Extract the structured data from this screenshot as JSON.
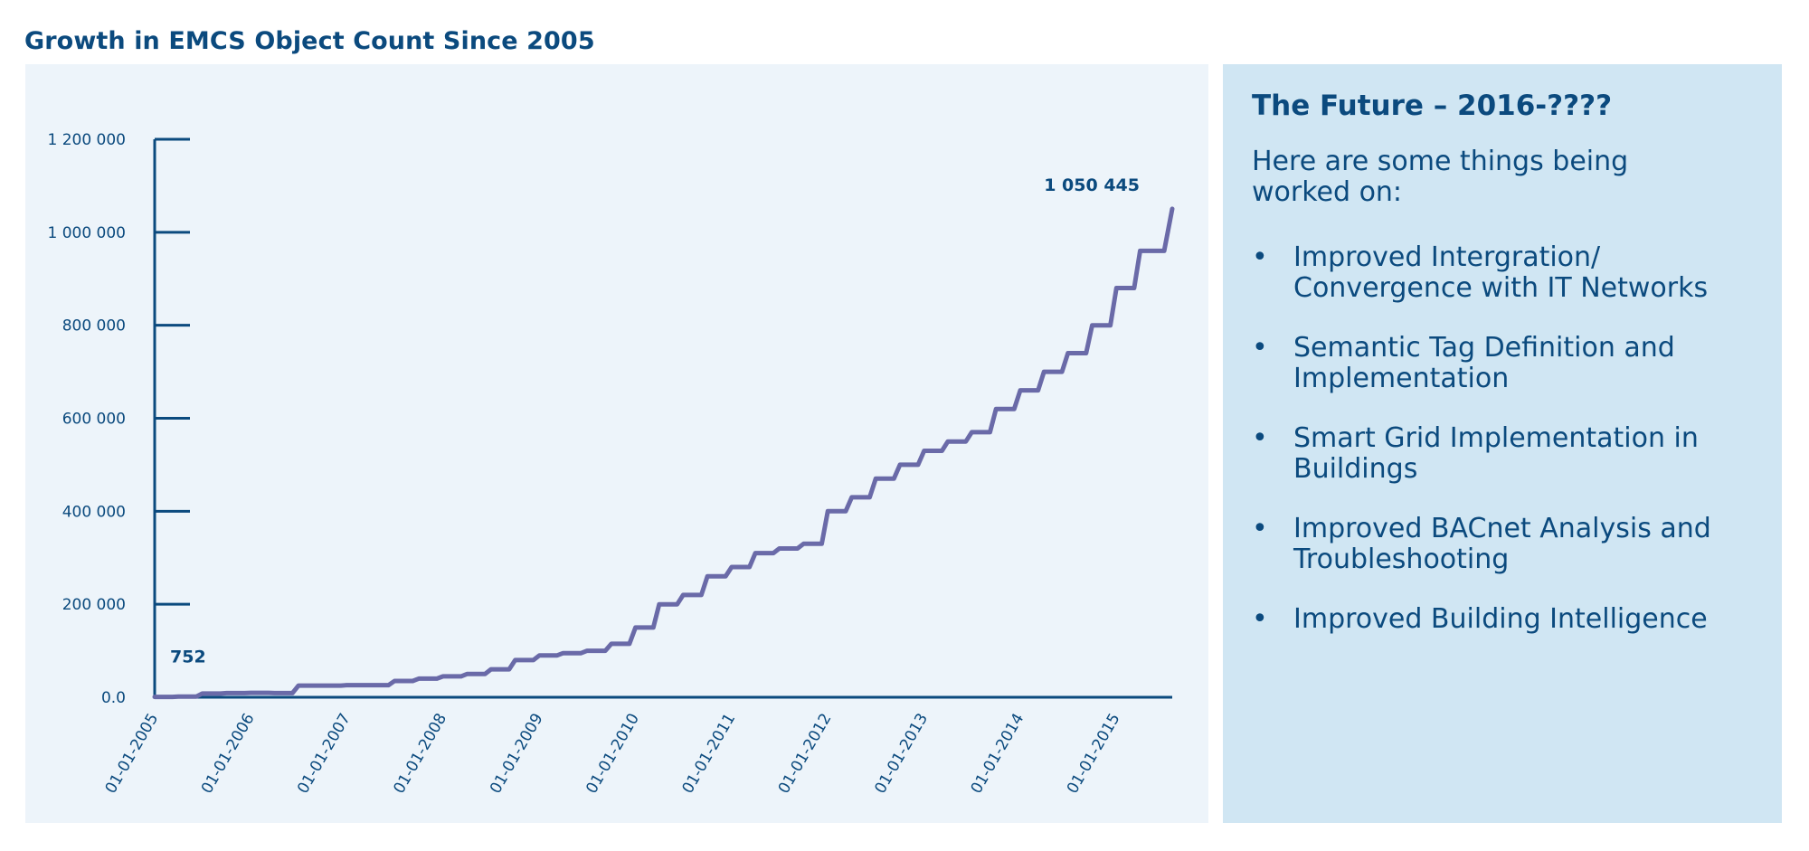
{
  "page": {
    "title": "Growth in EMCS Object Count Since 2005"
  },
  "side": {
    "title": "The Future – 2016-????",
    "intro": "Here are some things being worked on:",
    "items": [
      "Improved Intergration/ Convergence with IT Networks",
      "Semantic Tag Definition and Implementation",
      "Smart Grid Implementation in Buildings",
      "Improved BACnet Analysis and Troubleshooting",
      "Improved Building Intelligence"
    ]
  },
  "colors": {
    "title": "#0b4a7e",
    "axis": "#0b4a7e",
    "line": "#6a6aa8",
    "chart_bg": "#edf4fa",
    "side_bg": "#d0e6f3"
  },
  "chart_data": {
    "type": "line",
    "title": "Growth in EMCS Object Count Since 2005",
    "xlabel": "",
    "ylabel": "",
    "ylim": [
      0,
      1200000
    ],
    "xlim": [
      "2005-01-01",
      "2015-08-01"
    ],
    "y_ticks": [
      0,
      200000,
      400000,
      600000,
      800000,
      1000000,
      1200000
    ],
    "y_tick_labels": [
      "0.0",
      "200 000",
      "400 000",
      "600 000",
      "800 000",
      "1 000 000",
      "1 200 000"
    ],
    "x_ticks": [
      "2005-01-01",
      "2006-01-01",
      "2007-01-01",
      "2008-01-01",
      "2009-01-01",
      "2010-01-01",
      "2011-01-01",
      "2012-01-01",
      "2013-01-01",
      "2014-01-01",
      "2015-01-01"
    ],
    "x_tick_labels": [
      "01-01-2005",
      "01-01-2006",
      "01-01-2007",
      "01-01-2008",
      "01-01-2009",
      "01-01-2010",
      "01-01-2011",
      "01-01-2012",
      "01-01-2013",
      "01-01-2014",
      "01-01-2015"
    ],
    "grid": false,
    "annotations": [
      {
        "text": "752",
        "x": "2005-01-01",
        "y": 752
      },
      {
        "text": "1 050 445",
        "x": "2015-08-01",
        "y": 1050445
      }
    ],
    "series": [
      {
        "x": [
          "2005-01-01",
          "2005-04-01",
          "2005-07-01",
          "2005-10-01",
          "2006-01-01",
          "2006-04-01",
          "2006-07-01",
          "2006-10-01",
          "2007-01-01",
          "2007-04-01",
          "2007-07-01",
          "2007-10-01",
          "2008-01-01",
          "2008-04-01",
          "2008-07-01",
          "2008-10-01",
          "2009-01-01",
          "2009-04-01",
          "2009-07-01",
          "2009-10-01",
          "2010-01-01",
          "2010-04-01",
          "2010-07-01",
          "2010-10-01",
          "2011-01-01",
          "2011-04-01",
          "2011-07-01",
          "2011-10-01",
          "2012-01-01",
          "2012-04-01",
          "2012-07-01",
          "2012-10-01",
          "2013-01-01",
          "2013-04-01",
          "2013-07-01",
          "2013-10-01",
          "2014-01-01",
          "2014-04-01",
          "2014-07-01",
          "2014-10-01",
          "2015-01-01",
          "2015-04-01",
          "2015-08-01"
        ],
        "y": [
          752,
          1500,
          8000,
          9000,
          9500,
          9000,
          25000,
          25000,
          26000,
          26000,
          35000,
          40000,
          45000,
          50000,
          60000,
          80000,
          90000,
          95000,
          100000,
          115000,
          150000,
          200000,
          220000,
          260000,
          280000,
          310000,
          320000,
          330000,
          400000,
          430000,
          470000,
          500000,
          530000,
          550000,
          570000,
          620000,
          660000,
          700000,
          740000,
          800000,
          880000,
          960000,
          1050445
        ]
      }
    ]
  }
}
